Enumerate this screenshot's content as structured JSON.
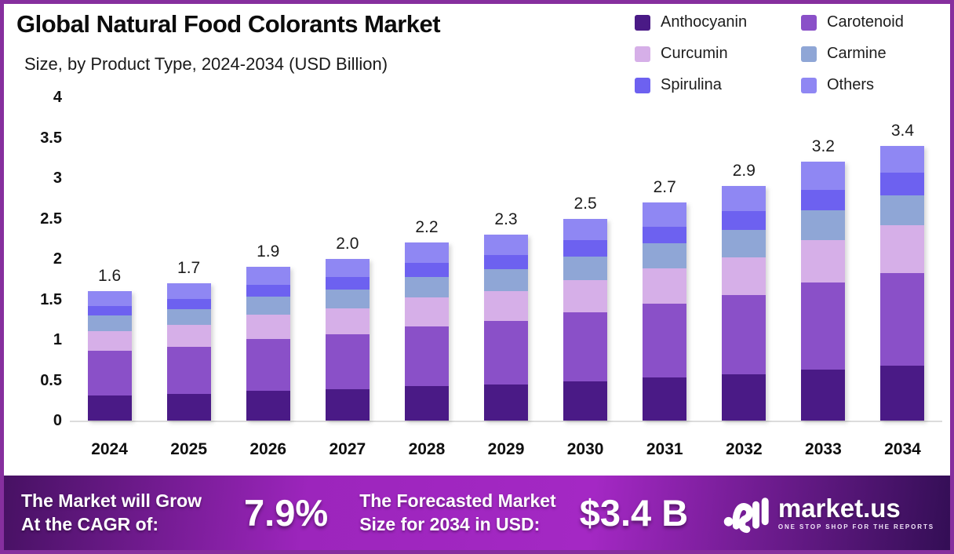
{
  "frame": {
    "border_color": "#862f9e",
    "background": "#ffffff"
  },
  "header": {
    "title": "Global Natural Food Colorants Market",
    "subtitle": "Size, by Product Type, 2024-2034 (USD Billion)"
  },
  "chart_data": {
    "type": "bar",
    "stacked": true,
    "title": "Global Natural Food Colorants Market Size, by Product Type, 2024-2034 (USD Billion)",
    "categories": [
      "2024",
      "2025",
      "2026",
      "2027",
      "2028",
      "2029",
      "2030",
      "2031",
      "2032",
      "2033",
      "2034"
    ],
    "series": [
      {
        "name": "Anthocyanin",
        "color": "#4a1a86",
        "values": [
          0.31,
          0.33,
          0.37,
          0.39,
          0.43,
          0.45,
          0.49,
          0.53,
          0.57,
          0.63,
          0.68
        ]
      },
      {
        "name": "Carotenoid",
        "color": "#8a50c8",
        "values": [
          0.55,
          0.58,
          0.64,
          0.68,
          0.74,
          0.78,
          0.85,
          0.92,
          0.98,
          1.08,
          1.15
        ]
      },
      {
        "name": "Curcumin",
        "color": "#d6afe8",
        "values": [
          0.25,
          0.27,
          0.3,
          0.32,
          0.35,
          0.37,
          0.4,
          0.43,
          0.47,
          0.52,
          0.59
        ]
      },
      {
        "name": "Carmine",
        "color": "#8fa6d6",
        "values": [
          0.19,
          0.2,
          0.22,
          0.23,
          0.26,
          0.27,
          0.29,
          0.31,
          0.34,
          0.37,
          0.37
        ]
      },
      {
        "name": "Spirulina",
        "color": "#6d61f0",
        "values": [
          0.12,
          0.13,
          0.15,
          0.16,
          0.17,
          0.18,
          0.2,
          0.21,
          0.23,
          0.25,
          0.28
        ]
      },
      {
        "name": "Others",
        "color": "#8f87f3",
        "values": [
          0.18,
          0.19,
          0.22,
          0.22,
          0.25,
          0.25,
          0.27,
          0.3,
          0.31,
          0.35,
          0.33
        ]
      }
    ],
    "totals_labels": [
      "1.6",
      "1.7",
      "1.9",
      "2.0",
      "2.2",
      "2.3",
      "2.5",
      "2.7",
      "2.9",
      "3.2",
      "3.4"
    ],
    "ylim": [
      0,
      4
    ],
    "yticks": [
      4,
      3.5,
      3,
      2.5,
      2,
      1.5,
      1,
      0.5,
      0
    ],
    "ytick_labels": [
      "4",
      "3.5",
      "3",
      "2.5",
      "2",
      "1.5",
      "1",
      "0.5",
      "0"
    ],
    "grid": false,
    "legend_position": "top-right",
    "xlabel": "",
    "ylabel": ""
  },
  "footer": {
    "cagr_label_line1": "The Market will Grow",
    "cagr_label_line2": "At the CAGR of:",
    "cagr_value": "7.9%",
    "forecast_label_line1": "The Forecasted Market",
    "forecast_label_line2": "Size for 2034 in USD:",
    "forecast_value": "$3.4 B",
    "brand": {
      "name": "market.us",
      "tagline": "ONE STOP SHOP FOR THE REPORTS"
    }
  }
}
